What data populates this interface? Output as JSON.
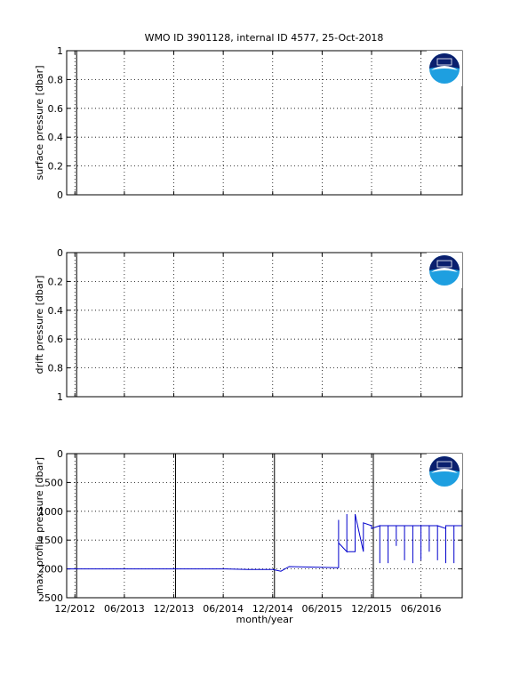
{
  "chart_data": [
    {
      "type": "line",
      "title": "WMO ID 3901128, internal ID 4577, 25-Oct-2018",
      "ylabel": "surface pressure [dbar]",
      "xlim": [
        "2012-11",
        "2016-11"
      ],
      "xticks": [
        "2012-12",
        "2013-06",
        "2013-12",
        "2014-06",
        "2014-12",
        "2015-06",
        "2015-12",
        "2016-06"
      ],
      "ylim": [
        0,
        1
      ],
      "yticks": [
        0,
        0.2,
        0.4,
        0.6,
        0.8,
        1
      ],
      "reversed": false,
      "grid": true,
      "vlines": [
        "2012-12"
      ],
      "series": []
    },
    {
      "type": "line",
      "ylabel": "drift pressure [dbar]",
      "xlim": [
        "2012-11",
        "2016-11"
      ],
      "xticks": [
        "2012-12",
        "2013-06",
        "2013-12",
        "2014-06",
        "2014-12",
        "2015-06",
        "2015-12",
        "2016-06"
      ],
      "ylim": [
        0,
        1
      ],
      "yticks": [
        0,
        0.2,
        0.4,
        0.6,
        0.8,
        1
      ],
      "reversed": true,
      "grid": true,
      "vlines": [
        "2012-12"
      ],
      "series": []
    },
    {
      "type": "line",
      "ylabel": "max. profile pressure [dbar]",
      "xlabel": "month/year",
      "xlim": [
        "2012-11",
        "2016-11"
      ],
      "xticks": [
        {
          "value": "2012-12",
          "label": "12/2012"
        },
        {
          "value": "2013-06",
          "label": "06/2013"
        },
        {
          "value": "2013-12",
          "label": "12/2013"
        },
        {
          "value": "2014-06",
          "label": "06/2014"
        },
        {
          "value": "2014-12",
          "label": "12/2014"
        },
        {
          "value": "2015-06",
          "label": "06/2015"
        },
        {
          "value": "2015-12",
          "label": "12/2015"
        },
        {
          "value": "2016-06",
          "label": "06/2016"
        }
      ],
      "ylim": [
        0,
        2500
      ],
      "yticks": [
        0,
        500,
        1000,
        1500,
        2000,
        2500
      ],
      "reversed": true,
      "grid": true,
      "vlines": [
        "2012-12",
        "2013-12",
        "2014-12",
        "2015-12"
      ],
      "series": [
        {
          "color": "#0000cc",
          "x": [
            "2012-11",
            "2012-11",
            "2012-12",
            "2013-06",
            "2013-12",
            "2014-06",
            "2014-09",
            "2014-12",
            "2015-01",
            "2015-02",
            "2015-08",
            "2015-08",
            "2015-08",
            "2015-09",
            "2015-09",
            "2015-09",
            "2015-10",
            "2015-10",
            "2015-10",
            "2015-10",
            "2015-11",
            "2015-11",
            "2015-12",
            "2015-12",
            "2016-01",
            "2016-01",
            "2016-01",
            "2016-02",
            "2016-02",
            "2016-02",
            "2016-03",
            "2016-03",
            "2016-03",
            "2016-04",
            "2016-04",
            "2016-04",
            "2016-05",
            "2016-05",
            "2016-05",
            "2016-06",
            "2016-06",
            "2016-06",
            "2016-07",
            "2016-07",
            "2016-07",
            "2016-08",
            "2016-08",
            "2016-08",
            "2016-09",
            "2016-09",
            "2016-09",
            "2016-10",
            "2016-10",
            "2016-10",
            "2016-11"
          ],
          "values": [
            0,
            2000,
            2000,
            2000,
            2000,
            2000,
            2010,
            2010,
            2040,
            1960,
            1980,
            1150,
            1550,
            1700,
            1050,
            1700,
            1700,
            1050,
            1700,
            1050,
            1700,
            1200,
            1250,
            1300,
            1250,
            1900,
            1250,
            1250,
            1900,
            1250,
            1250,
            1600,
            1250,
            1250,
            1850,
            1250,
            1250,
            1900,
            1250,
            1250,
            1850,
            1250,
            1250,
            1700,
            1250,
            1250,
            1850,
            1250,
            1300,
            1900,
            1250,
            1250,
            1900,
            1250,
            1250
          ]
        }
      ]
    }
  ]
}
